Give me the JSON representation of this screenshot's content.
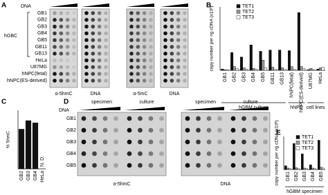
{
  "panel_a": {
    "label": "A",
    "dna_label": "DNA",
    "group_label": "hGBC",
    "rows": [
      "GB1",
      "GB2",
      "GB3",
      "GB4",
      "GB5",
      "GB11",
      "GB13",
      "HeLa",
      "U87MG",
      "hNPC(fetal)",
      "hNPC(ES-derived)"
    ],
    "captions": [
      "α-5hmC",
      "DNA",
      "α-5mC",
      "DNA"
    ]
  },
  "panel_d": {
    "label": "D",
    "dna_label": "DNA",
    "headers": [
      "specimen",
      "culture",
      "specimen",
      "culture"
    ],
    "rows": [
      "GB1",
      "GB2",
      "GB3",
      "GB4",
      "GB5"
    ],
    "captions": [
      "α-5hmC",
      "DNA"
    ]
  },
  "chart_data": [
    {
      "type": "bar",
      "label": "B",
      "y_label": "copy number per ng cDNA (x10³)",
      "categories": [
        "GB1",
        "GB2",
        "GB3",
        "GB4",
        "GB5",
        "GB11",
        "GB13",
        "hNPC(fetal)",
        "hNPC(ES-derived)",
        "U87MG",
        "HeLa"
      ],
      "series": [
        {
          "name": "TET1",
          "color": "#111111",
          "values": [
            0.2,
            2.8,
            2.1,
            4.0,
            3.0,
            3.2,
            3.2,
            3.1,
            9.1,
            0.1,
            0.2
          ]
        },
        {
          "name": "TET2",
          "color": "#999999",
          "values": [
            0.1,
            0.6,
            0.4,
            0.3,
            1.6,
            0.5,
            0.4,
            0.6,
            0.6,
            0.3,
            0.4
          ]
        },
        {
          "name": "TET3",
          "color": "#ffffff",
          "values": [
            0.1,
            0.3,
            0.2,
            0.2,
            0.4,
            0.2,
            0.2,
            0.2,
            0.3,
            0.1,
            0.5
          ]
        }
      ],
      "groups": [
        "hGBM culture",
        "hNPC",
        "cell lines"
      ],
      "ylim": [
        0,
        10
      ]
    },
    {
      "type": "bar",
      "label": "C",
      "y_label": "% 5hmC",
      "categories": [
        "GB2",
        "GB3",
        "GB4",
        "HeLa"
      ],
      "series": [
        {
          "name": "5hmC",
          "color": "#111111",
          "values": [
            0.88,
            1.07,
            1.02,
            null
          ],
          "value_labels": [
            null,
            null,
            null,
            "N. D."
          ]
        }
      ],
      "ylim": [
        0,
        1.3
      ]
    },
    {
      "type": "bar",
      "label": "E",
      "y_label": "copy number per ng cDNA (x10³)",
      "categories": [
        "GB1",
        "GB2",
        "GB3",
        "GB4",
        "GB5"
      ],
      "series": [
        {
          "name": "TET1",
          "color": "#111111",
          "values": [
            0.8,
            5.5,
            3.3,
            1.0,
            6.2
          ]
        },
        {
          "name": "TET2",
          "color": "#999999",
          "values": [
            0.3,
            0.4,
            0.3,
            0.3,
            0.5
          ]
        },
        {
          "name": "TET3",
          "color": "#ffffff",
          "values": [
            0.2,
            0.2,
            0.2,
            0.2,
            0.3
          ]
        }
      ],
      "groups": [
        "hGBM specimen"
      ],
      "ylim": [
        0,
        7
      ]
    }
  ]
}
